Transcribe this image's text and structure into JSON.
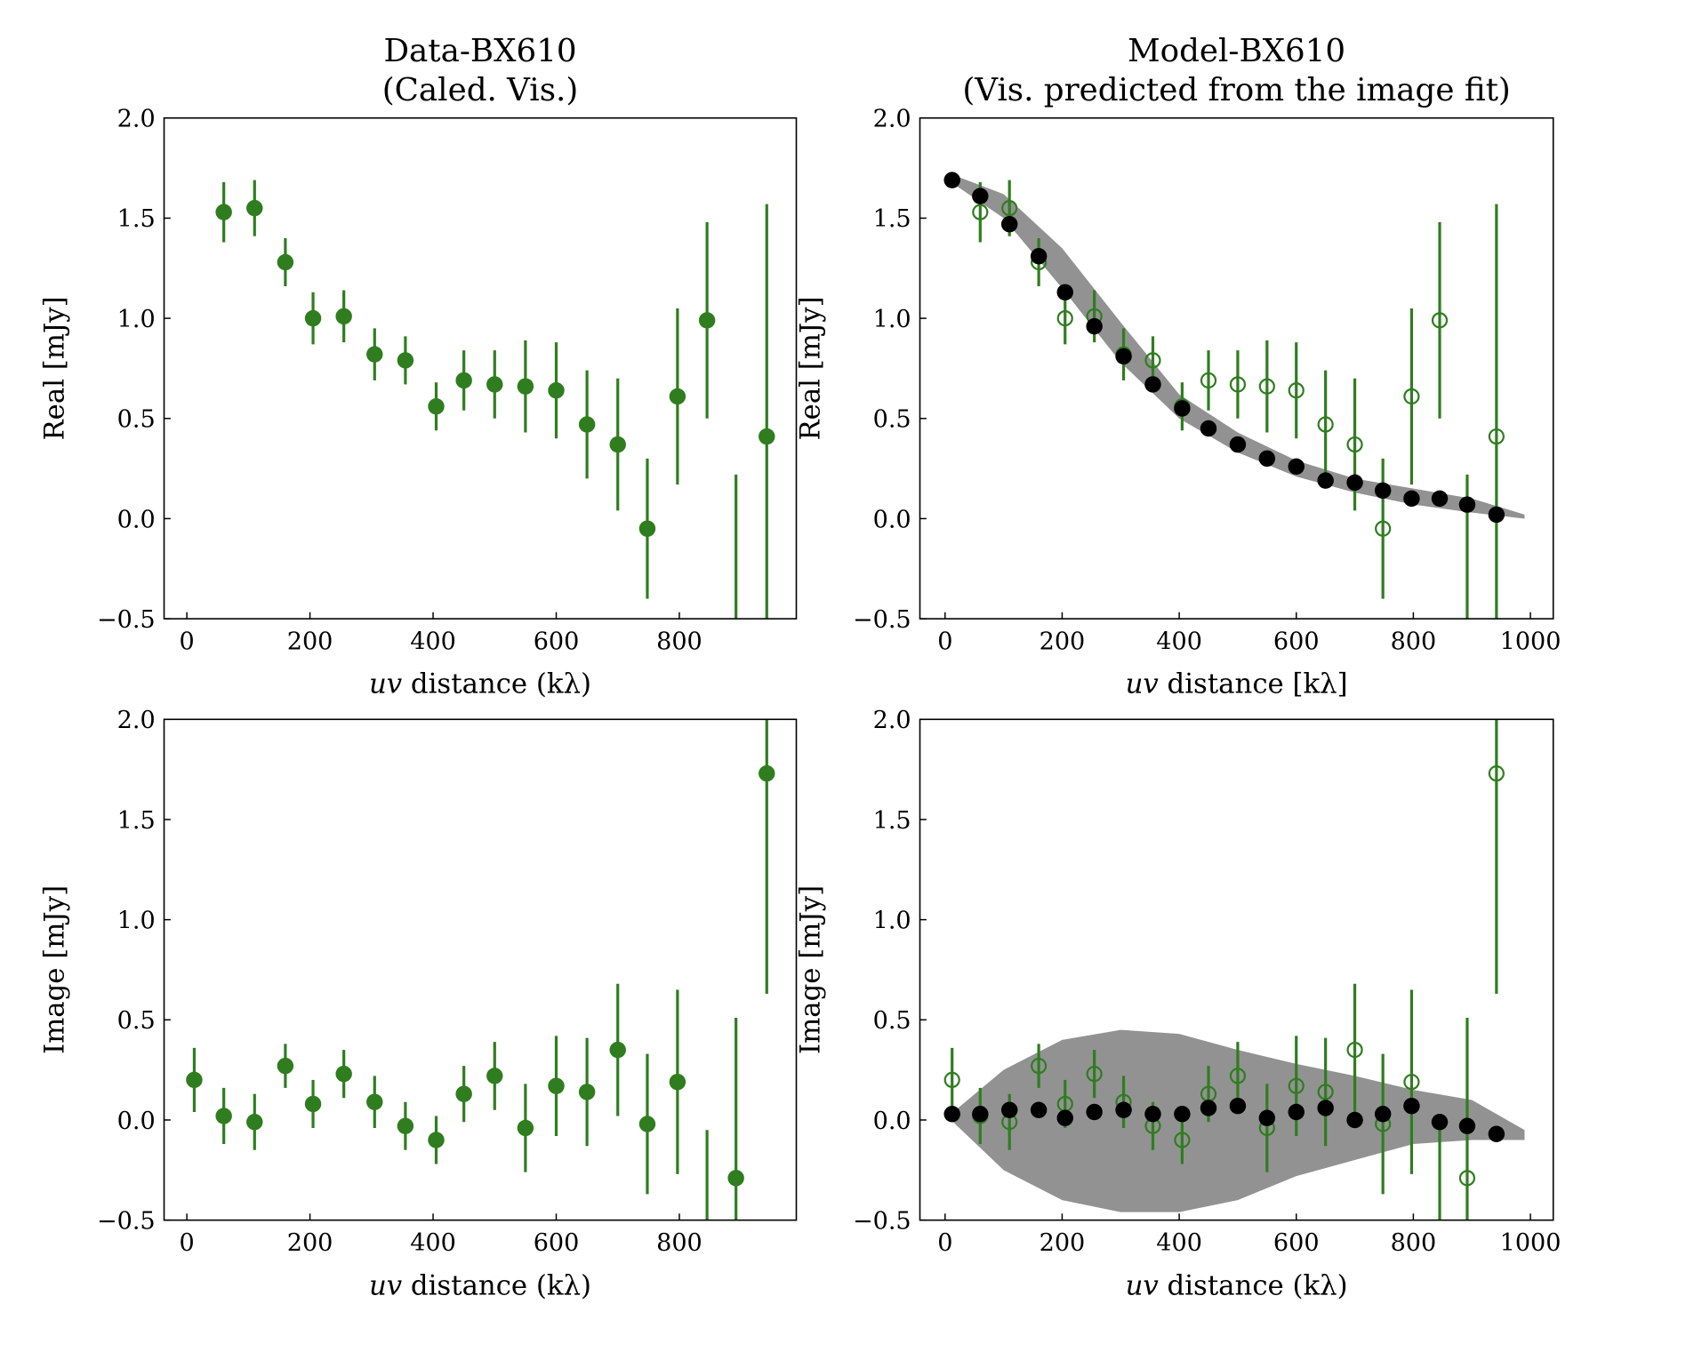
{
  "chart_data": [
    {
      "type": "errorbar",
      "title": [
        "Data-BX610",
        "(Caled. Vis.)"
      ],
      "xlabel": [
        "uv",
        " distance (kλ)"
      ],
      "ylabel": "Real [mJy]",
      "xlim": [
        -37,
        990
      ],
      "ylim": [
        -0.5,
        2.0
      ],
      "xticks": [
        0,
        200,
        400,
        600,
        800
      ],
      "yticks": [
        {
          "value": -0.5,
          "label": "−0.5"
        },
        {
          "value": 0,
          "label": "0.0"
        },
        {
          "value": 0.5,
          "label": "0.5"
        },
        {
          "value": 1,
          "label": "1.0"
        },
        {
          "value": 1.5,
          "label": "1.5"
        },
        {
          "value": 2,
          "label": "2.0"
        }
      ],
      "series": [
        {
          "style": "filled",
          "color": "#2f7d1f",
          "x": [
            60,
            110,
            160,
            205,
            255,
            305,
            355,
            405,
            450,
            500,
            550,
            600,
            650,
            700,
            748,
            797,
            845,
            892,
            942
          ],
          "values": [
            1.53,
            1.55,
            1.28,
            1.0,
            1.01,
            0.82,
            0.79,
            0.56,
            0.69,
            0.67,
            0.66,
            0.64,
            0.47,
            0.37,
            -0.05,
            0.61,
            0.99,
            -0.6,
            0.41
          ],
          "errors": [
            0.15,
            0.14,
            0.12,
            0.13,
            0.13,
            0.13,
            0.12,
            0.12,
            0.15,
            0.17,
            0.23,
            0.24,
            0.27,
            0.33,
            0.35,
            0.44,
            0.49,
            0.82,
            1.16
          ]
        }
      ]
    },
    {
      "type": "errorbar",
      "title": [
        "Model-BX610",
        "(Vis. predicted from the image fit)"
      ],
      "xlabel": [
        "uv",
        " distance [kλ]"
      ],
      "ylabel": "Real [mJy]",
      "xlim": [
        -43,
        1039
      ],
      "ylim": [
        -0.5,
        2.0
      ],
      "xticks": [
        0,
        200,
        400,
        600,
        800,
        1000
      ],
      "yticks": [
        {
          "value": -0.5,
          "label": "−0.5"
        },
        {
          "value": 0,
          "label": "0.0"
        },
        {
          "value": 0.5,
          "label": "0.5"
        },
        {
          "value": 1,
          "label": "1.0"
        },
        {
          "value": 1.5,
          "label": "1.5"
        },
        {
          "value": 2,
          "label": "2.0"
        }
      ],
      "series": [
        {
          "style": "band",
          "color": "#8c8c8c",
          "x": [
            10,
            100,
            200,
            300,
            400,
            500,
            600,
            700,
            800,
            900,
            990
          ],
          "upper": [
            1.72,
            1.62,
            1.35,
            0.98,
            0.62,
            0.43,
            0.29,
            0.2,
            0.15,
            0.1,
            0.02
          ],
          "lower": [
            1.68,
            1.5,
            1.15,
            0.78,
            0.5,
            0.33,
            0.21,
            0.13,
            0.07,
            0.03,
            0.0
          ]
        },
        {
          "style": "open",
          "color": "#2f7d1f",
          "x": [
            60,
            110,
            160,
            205,
            255,
            305,
            355,
            405,
            450,
            500,
            550,
            600,
            650,
            700,
            748,
            797,
            845,
            892,
            942
          ],
          "values": [
            1.53,
            1.55,
            1.28,
            1.0,
            1.01,
            0.82,
            0.79,
            0.56,
            0.69,
            0.67,
            0.66,
            0.64,
            0.47,
            0.37,
            -0.05,
            0.61,
            0.99,
            -0.6,
            0.41
          ],
          "errors": [
            0.15,
            0.14,
            0.12,
            0.13,
            0.13,
            0.13,
            0.12,
            0.12,
            0.15,
            0.17,
            0.23,
            0.24,
            0.27,
            0.33,
            0.35,
            0.44,
            0.49,
            0.82,
            1.16
          ]
        },
        {
          "style": "filled",
          "color": "#000000",
          "x": [
            12,
            60,
            110,
            160,
            205,
            255,
            305,
            355,
            405,
            450,
            500,
            550,
            600,
            650,
            700,
            748,
            797,
            845,
            892,
            942
          ],
          "values": [
            1.69,
            1.61,
            1.47,
            1.31,
            1.13,
            0.96,
            0.81,
            0.67,
            0.55,
            0.45,
            0.37,
            0.3,
            0.26,
            0.19,
            0.18,
            0.14,
            0.1,
            0.1,
            0.07,
            0.02
          ]
        }
      ]
    },
    {
      "type": "errorbar",
      "xlabel": [
        "uv",
        " distance (kλ)"
      ],
      "ylabel": "Image [mJy]",
      "xlim": [
        -37,
        990
      ],
      "ylim": [
        -0.5,
        2.0
      ],
      "xticks": [
        0,
        200,
        400,
        600,
        800
      ],
      "yticks": [
        {
          "value": -0.5,
          "label": "−0.5"
        },
        {
          "value": 0,
          "label": "0.0"
        },
        {
          "value": 0.5,
          "label": "0.5"
        },
        {
          "value": 1,
          "label": "1.0"
        },
        {
          "value": 1.5,
          "label": "1.5"
        },
        {
          "value": 2,
          "label": "2.0"
        }
      ],
      "series": [
        {
          "style": "filled",
          "color": "#2f7d1f",
          "x": [
            12,
            60,
            110,
            160,
            205,
            255,
            305,
            355,
            405,
            450,
            500,
            550,
            600,
            650,
            700,
            748,
            797,
            845,
            892,
            942
          ],
          "values": [
            0.2,
            0.02,
            -0.01,
            0.27,
            0.08,
            0.23,
            0.09,
            -0.03,
            -0.1,
            0.13,
            0.22,
            -0.04,
            0.17,
            0.14,
            0.35,
            -0.02,
            0.19,
            -0.6,
            -0.29,
            1.73
          ],
          "errors": [
            0.16,
            0.14,
            0.14,
            0.11,
            0.12,
            0.12,
            0.13,
            0.12,
            0.12,
            0.14,
            0.17,
            0.22,
            0.25,
            0.27,
            0.33,
            0.35,
            0.46,
            0.55,
            0.8,
            1.1
          ]
        }
      ]
    },
    {
      "type": "errorbar",
      "xlabel": [
        "uv",
        " distance (kλ)"
      ],
      "ylabel": "Image [mJy]",
      "xlim": [
        -43,
        1039
      ],
      "ylim": [
        -0.5,
        2.0
      ],
      "xticks": [
        0,
        200,
        400,
        600,
        800,
        1000
      ],
      "yticks": [
        {
          "value": -0.5,
          "label": "−0.5"
        },
        {
          "value": 0,
          "label": "0.0"
        },
        {
          "value": 0.5,
          "label": "0.5"
        },
        {
          "value": 1,
          "label": "1.0"
        },
        {
          "value": 1.5,
          "label": "1.5"
        },
        {
          "value": 2,
          "label": "2.0"
        }
      ],
      "series": [
        {
          "style": "band",
          "color": "#8c8c8c",
          "x": [
            10,
            100,
            200,
            300,
            400,
            500,
            600,
            700,
            800,
            900,
            990
          ],
          "upper": [
            0.03,
            0.25,
            0.4,
            0.45,
            0.43,
            0.35,
            0.28,
            0.22,
            0.15,
            0.1,
            -0.05
          ],
          "lower": [
            0.0,
            -0.25,
            -0.4,
            -0.46,
            -0.46,
            -0.4,
            -0.28,
            -0.2,
            -0.12,
            -0.1,
            -0.1
          ]
        },
        {
          "style": "open",
          "color": "#2f7d1f",
          "x": [
            12,
            60,
            110,
            160,
            205,
            255,
            305,
            355,
            405,
            450,
            500,
            550,
            600,
            650,
            700,
            748,
            797,
            845,
            892,
            942
          ],
          "values": [
            0.2,
            0.02,
            -0.01,
            0.27,
            0.08,
            0.23,
            0.09,
            -0.03,
            -0.1,
            0.13,
            0.22,
            -0.04,
            0.17,
            0.14,
            0.35,
            -0.02,
            0.19,
            -0.6,
            -0.29,
            1.73
          ],
          "errors": [
            0.16,
            0.14,
            0.14,
            0.11,
            0.12,
            0.12,
            0.13,
            0.12,
            0.12,
            0.14,
            0.17,
            0.22,
            0.25,
            0.27,
            0.33,
            0.35,
            0.46,
            0.55,
            0.8,
            1.1
          ]
        },
        {
          "style": "filled",
          "color": "#000000",
          "x": [
            12,
            60,
            110,
            160,
            205,
            255,
            305,
            355,
            405,
            450,
            500,
            550,
            600,
            650,
            700,
            748,
            797,
            845,
            892,
            942
          ],
          "values": [
            0.03,
            0.03,
            0.05,
            0.05,
            0.01,
            0.04,
            0.05,
            0.03,
            0.03,
            0.06,
            0.07,
            0.01,
            0.04,
            0.06,
            0.0,
            0.03,
            0.07,
            -0.01,
            -0.03,
            -0.07
          ]
        }
      ]
    }
  ]
}
